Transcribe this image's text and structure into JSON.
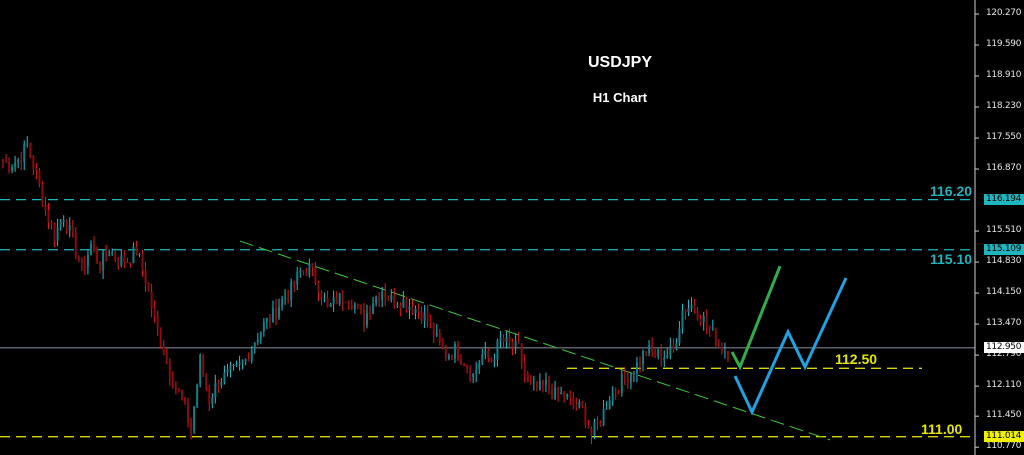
{
  "chart_data": {
    "type": "candlestick",
    "title": "USDJPY",
    "subtitle": "H1 Chart",
    "symbol": "USDJPY",
    "timeframe": "H1",
    "ylim": [
      110.77,
      120.3
    ],
    "y_ticks": [
      "120.270",
      "119.590",
      "118.910",
      "118.230",
      "117.550",
      "116.870",
      "115.510",
      "114.830",
      "114.150",
      "113.470",
      "112.790",
      "112.110",
      "111.450",
      "110.770"
    ],
    "price_path": [
      117.07,
      116.96,
      117.07,
      117.4,
      116.74,
      115.97,
      115.42,
      115.86,
      115.31,
      114.66,
      115.2,
      114.77,
      115.09,
      114.88,
      114.88,
      115.09,
      114.44,
      113.56,
      112.9,
      112.24,
      111.81,
      111.15,
      112.68,
      111.81,
      112.24,
      112.35,
      112.46,
      112.68,
      113.12,
      113.45,
      113.67,
      114.0,
      114.22,
      114.61,
      114.7,
      114.33,
      113.78,
      114.0,
      114.11,
      113.89,
      113.56,
      114.0,
      114.22,
      114.0,
      114.0,
      113.89,
      113.78,
      113.56,
      113.12,
      112.79,
      112.9,
      112.68,
      112.35,
      112.79,
      112.68,
      113.12,
      113.01,
      112.9,
      112.13,
      112.02,
      112.13,
      111.91,
      111.91,
      111.7,
      111.59,
      111.04,
      111.37,
      111.91,
      112.13,
      112.35,
      112.57,
      112.9,
      112.79,
      112.79,
      112.9,
      113.78,
      113.89,
      113.67,
      113.34,
      113.01,
      112.86
    ],
    "current_price": {
      "value": 112.95,
      "label": "112.950",
      "color": "#ffffff"
    },
    "levels": [
      {
        "price": 116.2,
        "label": "116.20",
        "axis_label": "116.194",
        "color": "#1fb5be",
        "style": "dashed"
      },
      {
        "price": 115.1,
        "label": "115.10",
        "axis_label": "115.109",
        "color": "#1fb5be",
        "style": "dashed"
      },
      {
        "price": 112.5,
        "label": "112.50",
        "color": "#d6d600",
        "style": "dashed"
      },
      {
        "price": 111.0,
        "label": "111.00",
        "axis_label": "111.014",
        "color": "#d6d600",
        "style": "dashed"
      }
    ],
    "trendline": {
      "from_price": 115.29,
      "to_price": 110.93,
      "color": "#3cc83c",
      "style": "dashed"
    },
    "scenarios": [
      {
        "color": "#2fae48",
        "prices": [
          112.86,
          112.53,
          114.74
        ]
      },
      {
        "color": "#1da2e2",
        "prices": [
          112.33,
          111.54,
          113.3,
          112.53,
          114.48
        ]
      }
    ],
    "colors": {
      "bull": "#17c3cf",
      "bear": "#e8141a",
      "background": "#000000",
      "axis": "#e6e6e6"
    },
    "grid": false
  }
}
